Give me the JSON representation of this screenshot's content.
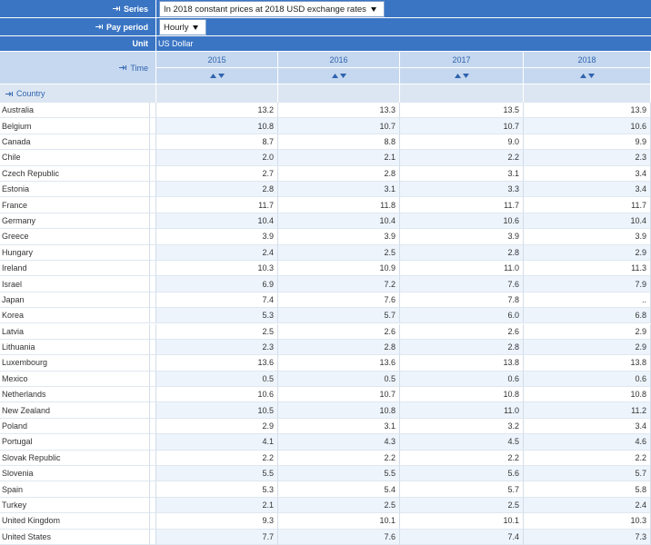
{
  "filters": {
    "series": {
      "label": "Series",
      "value": "In 2018 constant prices at 2018 USD exchange rates"
    },
    "pay_period": {
      "label": "Pay period",
      "value": "Hourly"
    },
    "unit": {
      "label": "Unit",
      "value": "US Dollar"
    }
  },
  "table": {
    "time_label": "Time",
    "columns": [
      "2015",
      "2016",
      "2017",
      "2018"
    ],
    "row_header": "Country",
    "rows": [
      {
        "country": "Australia",
        "values": [
          "13.2",
          "13.3",
          "13.5",
          "13.9"
        ]
      },
      {
        "country": "Belgium",
        "values": [
          "10.8",
          "10.7",
          "10.7",
          "10.6"
        ]
      },
      {
        "country": "Canada",
        "values": [
          "8.7",
          "8.8",
          "9.0",
          "9.9"
        ]
      },
      {
        "country": "Chile",
        "values": [
          "2.0",
          "2.1",
          "2.2",
          "2.3"
        ]
      },
      {
        "country": "Czech Republic",
        "values": [
          "2.7",
          "2.8",
          "3.1",
          "3.4"
        ]
      },
      {
        "country": "Estonia",
        "values": [
          "2.8",
          "3.1",
          "3.3",
          "3.4"
        ]
      },
      {
        "country": "France",
        "values": [
          "11.7",
          "11.8",
          "11.7",
          "11.7"
        ]
      },
      {
        "country": "Germany",
        "values": [
          "10.4",
          "10.4",
          "10.6",
          "10.4"
        ]
      },
      {
        "country": "Greece",
        "values": [
          "3.9",
          "3.9",
          "3.9",
          "3.9"
        ]
      },
      {
        "country": "Hungary",
        "values": [
          "2.4",
          "2.5",
          "2.8",
          "2.9"
        ]
      },
      {
        "country": "Ireland",
        "values": [
          "10.3",
          "10.9",
          "11.0",
          "11.3"
        ]
      },
      {
        "country": "Israel",
        "values": [
          "6.9",
          "7.2",
          "7.6",
          "7.9"
        ]
      },
      {
        "country": "Japan",
        "values": [
          "7.4",
          "7.6",
          "7.8",
          ".."
        ]
      },
      {
        "country": "Korea",
        "values": [
          "5.3",
          "5.7",
          "6.0",
          "6.8"
        ]
      },
      {
        "country": "Latvia",
        "values": [
          "2.5",
          "2.6",
          "2.6",
          "2.9"
        ]
      },
      {
        "country": "Lithuania",
        "values": [
          "2.3",
          "2.8",
          "2.8",
          "2.9"
        ]
      },
      {
        "country": "Luxembourg",
        "values": [
          "13.6",
          "13.6",
          "13.8",
          "13.8"
        ]
      },
      {
        "country": "Mexico",
        "values": [
          "0.5",
          "0.5",
          "0.6",
          "0.6"
        ]
      },
      {
        "country": "Netherlands",
        "values": [
          "10.6",
          "10.7",
          "10.8",
          "10.8"
        ]
      },
      {
        "country": "New Zealand",
        "values": [
          "10.5",
          "10.8",
          "11.0",
          "11.2"
        ]
      },
      {
        "country": "Poland",
        "values": [
          "2.9",
          "3.1",
          "3.2",
          "3.4"
        ]
      },
      {
        "country": "Portugal",
        "values": [
          "4.1",
          "4.3",
          "4.5",
          "4.6"
        ]
      },
      {
        "country": "Slovak Republic",
        "values": [
          "2.2",
          "2.2",
          "2.2",
          "2.2"
        ]
      },
      {
        "country": "Slovenia",
        "values": [
          "5.5",
          "5.5",
          "5.6",
          "5.7"
        ]
      },
      {
        "country": "Spain",
        "values": [
          "5.3",
          "5.4",
          "5.7",
          "5.8"
        ]
      },
      {
        "country": "Turkey",
        "values": [
          "2.1",
          "2.5",
          "2.5",
          "2.4"
        ]
      },
      {
        "country": "United Kingdom",
        "values": [
          "9.3",
          "10.1",
          "10.1",
          "10.3"
        ]
      },
      {
        "country": "United States",
        "values": [
          "7.7",
          "7.6",
          "7.4",
          "7.3"
        ]
      }
    ]
  }
}
